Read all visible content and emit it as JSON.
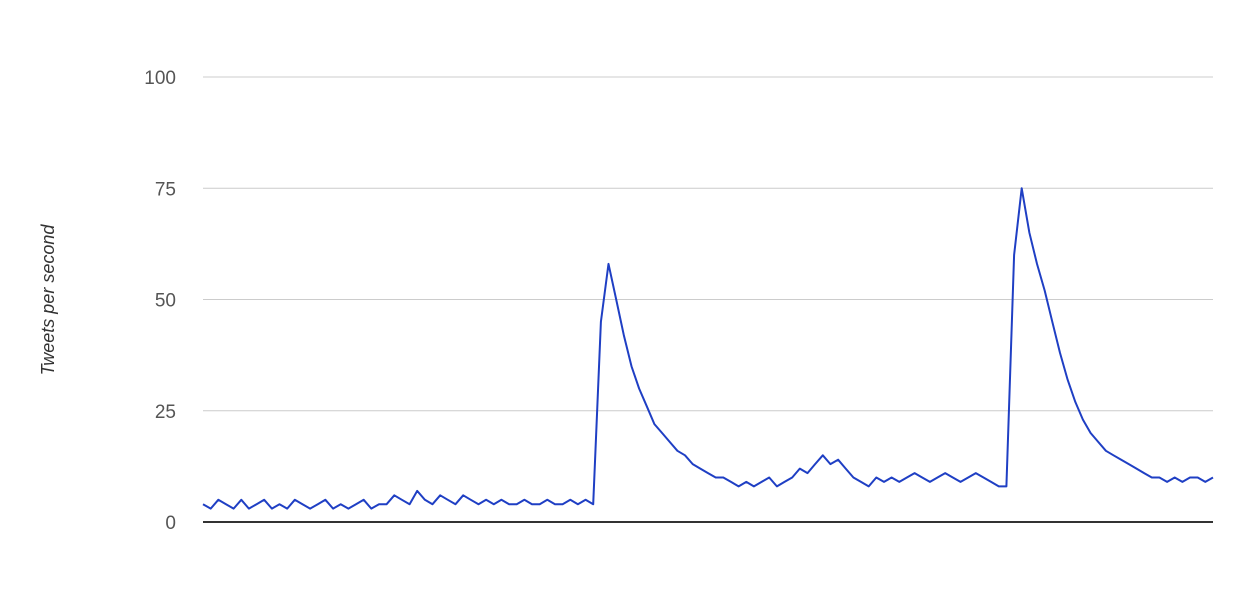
{
  "chart_data": {
    "type": "line",
    "title": "",
    "xlabel": "",
    "ylabel": "Tweets per second",
    "ylim": [
      0,
      100
    ],
    "yticks": [
      "0",
      "25",
      "50",
      "75",
      "100"
    ],
    "grid": true,
    "colors": {
      "line": "#1f3fc4",
      "grid": "#cccccc",
      "axis": "#333333"
    },
    "series": [
      {
        "points": [
          [
            0,
            4
          ],
          [
            1,
            3
          ],
          [
            2,
            5
          ],
          [
            3,
            4
          ],
          [
            4,
            3
          ],
          [
            5,
            5
          ],
          [
            6,
            3
          ],
          [
            7,
            4
          ],
          [
            8,
            5
          ],
          [
            9,
            3
          ],
          [
            10,
            4
          ],
          [
            11,
            3
          ],
          [
            12,
            5
          ],
          [
            13,
            4
          ],
          [
            14,
            3
          ],
          [
            15,
            4
          ],
          [
            16,
            5
          ],
          [
            17,
            3
          ],
          [
            18,
            4
          ],
          [
            19,
            3
          ],
          [
            20,
            4
          ],
          [
            21,
            5
          ],
          [
            22,
            3
          ],
          [
            23,
            4
          ],
          [
            24,
            4
          ],
          [
            25,
            6
          ],
          [
            26,
            5
          ],
          [
            27,
            4
          ],
          [
            28,
            7
          ],
          [
            29,
            5
          ],
          [
            30,
            4
          ],
          [
            31,
            6
          ],
          [
            32,
            5
          ],
          [
            33,
            4
          ],
          [
            34,
            6
          ],
          [
            35,
            5
          ],
          [
            36,
            4
          ],
          [
            37,
            5
          ],
          [
            38,
            4
          ],
          [
            39,
            5
          ],
          [
            40,
            4
          ],
          [
            41,
            4
          ],
          [
            42,
            5
          ],
          [
            43,
            4
          ],
          [
            44,
            4
          ],
          [
            45,
            5
          ],
          [
            46,
            4
          ],
          [
            47,
            4
          ],
          [
            48,
            5
          ],
          [
            49,
            4
          ],
          [
            50,
            5
          ],
          [
            51,
            4
          ],
          [
            52,
            45
          ],
          [
            53,
            58
          ],
          [
            54,
            50
          ],
          [
            55,
            42
          ],
          [
            56,
            35
          ],
          [
            57,
            30
          ],
          [
            58,
            26
          ],
          [
            59,
            22
          ],
          [
            60,
            20
          ],
          [
            61,
            18
          ],
          [
            62,
            16
          ],
          [
            63,
            15
          ],
          [
            64,
            13
          ],
          [
            65,
            12
          ],
          [
            66,
            11
          ],
          [
            67,
            10
          ],
          [
            68,
            10
          ],
          [
            69,
            9
          ],
          [
            70,
            8
          ],
          [
            71,
            9
          ],
          [
            72,
            8
          ],
          [
            73,
            9
          ],
          [
            74,
            10
          ],
          [
            75,
            8
          ],
          [
            76,
            9
          ],
          [
            77,
            10
          ],
          [
            78,
            12
          ],
          [
            79,
            11
          ],
          [
            80,
            13
          ],
          [
            81,
            15
          ],
          [
            82,
            13
          ],
          [
            83,
            14
          ],
          [
            84,
            12
          ],
          [
            85,
            10
          ],
          [
            86,
            9
          ],
          [
            87,
            8
          ],
          [
            88,
            10
          ],
          [
            89,
            9
          ],
          [
            90,
            10
          ],
          [
            91,
            9
          ],
          [
            92,
            10
          ],
          [
            93,
            11
          ],
          [
            94,
            10
          ],
          [
            95,
            9
          ],
          [
            96,
            10
          ],
          [
            97,
            11
          ],
          [
            98,
            10
          ],
          [
            99,
            9
          ],
          [
            100,
            10
          ],
          [
            101,
            11
          ],
          [
            102,
            10
          ],
          [
            103,
            9
          ],
          [
            104,
            8
          ],
          [
            105,
            8
          ],
          [
            106,
            60
          ],
          [
            107,
            75
          ],
          [
            108,
            65
          ],
          [
            109,
            58
          ],
          [
            110,
            52
          ],
          [
            111,
            45
          ],
          [
            112,
            38
          ],
          [
            113,
            32
          ],
          [
            114,
            27
          ],
          [
            115,
            23
          ],
          [
            116,
            20
          ],
          [
            117,
            18
          ],
          [
            118,
            16
          ],
          [
            119,
            15
          ],
          [
            120,
            14
          ],
          [
            121,
            13
          ],
          [
            122,
            12
          ],
          [
            123,
            11
          ],
          [
            124,
            10
          ],
          [
            125,
            10
          ],
          [
            126,
            9
          ],
          [
            127,
            10
          ],
          [
            128,
            9
          ],
          [
            129,
            10
          ],
          [
            130,
            10
          ],
          [
            131,
            9
          ],
          [
            132,
            10
          ]
        ]
      }
    ]
  }
}
